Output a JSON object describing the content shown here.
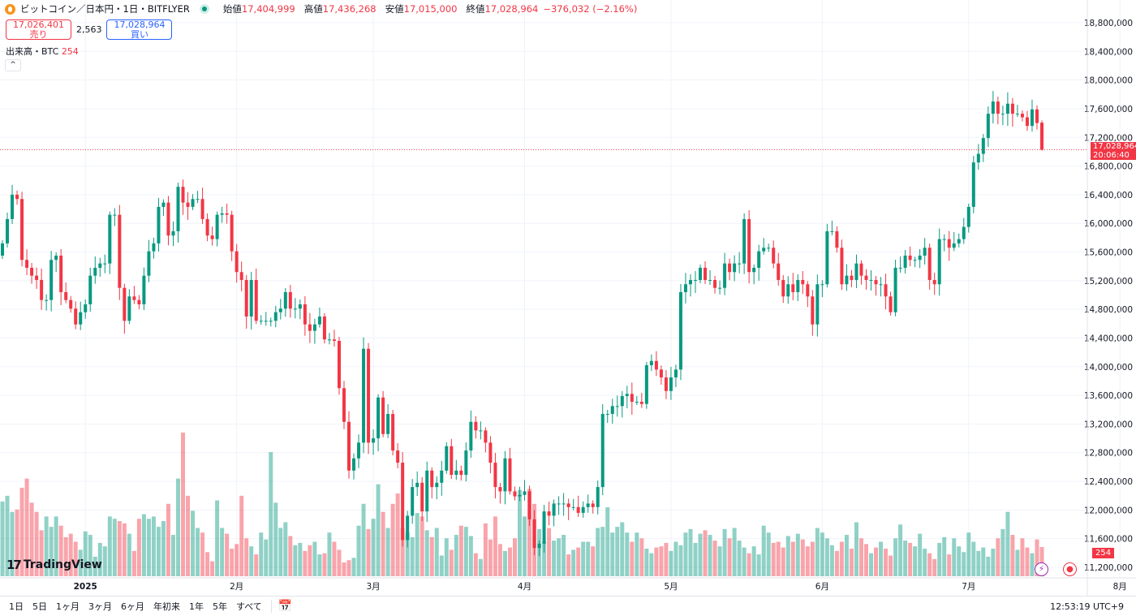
{
  "header": {
    "symbol": "ビットコイン／日本円・1日・BITFLYER",
    "open_label": "始値",
    "open": "17,404,999",
    "high_label": "高値",
    "high": "17,436,268",
    "low_label": "安値",
    "low": "17,015,000",
    "close_label": "終値",
    "close": "17,028,964",
    "change": "−376,032 (−2.16%)"
  },
  "trade": {
    "sell_price": "17,026,401",
    "sell_label": "売り",
    "spread": "2,563",
    "buy_price": "17,028,964",
    "buy_label": "買い"
  },
  "volume_indicator": {
    "label": "出来高・BTC",
    "value": "254"
  },
  "collapse_icon": "chevron-up-icon",
  "brand": "TradingView",
  "last_price": {
    "price": "17,028,964",
    "countdown": "20:06:40"
  },
  "bottom": {
    "ranges": [
      "1日",
      "5日",
      "1ヶ月",
      "3ヶ月",
      "6ヶ月",
      "年初来",
      "1年",
      "5年",
      "すべて"
    ],
    "clock": "12:53:19 UTC+9"
  },
  "colors": {
    "up": "#089981",
    "down": "#f23645",
    "grid": "#f0f3fa"
  },
  "chart_data": {
    "type": "candlestick",
    "interval": "1日",
    "ylim": [
      11200000,
      18800000
    ],
    "y_ticks": [
      "18,800,000",
      "18,400,000",
      "18,000,000",
      "17,600,000",
      "17,200,000",
      "16,800,000",
      "16,400,000",
      "16,000,000",
      "15,600,000",
      "15,200,000",
      "14,800,000",
      "14,400,000",
      "14,000,000",
      "13,600,000",
      "13,200,000",
      "12,800,000",
      "12,400,000",
      "12,000,000",
      "11,600,000",
      "11,200,000"
    ],
    "x_ticks": [
      {
        "label": "2025",
        "index": 17
      },
      {
        "label": "2月",
        "index": 48
      },
      {
        "label": "3月",
        "index": 76
      },
      {
        "label": "4月",
        "index": 107
      },
      {
        "label": "5月",
        "index": 137
      },
      {
        "label": "6月",
        "index": 168
      },
      {
        "label": "7月",
        "index": 198
      },
      {
        "label": "8月",
        "index": 229
      }
    ],
    "first_open": 15550000,
    "close": [
      15720000,
      16060000,
      16400000,
      16340000,
      15490000,
      15380000,
      15270000,
      15210000,
      14930000,
      14930000,
      15490000,
      15550000,
      15040000,
      14930000,
      14810000,
      14590000,
      14760000,
      14870000,
      15270000,
      15380000,
      15440000,
      15440000,
      16120000,
      16120000,
      15100000,
      14640000,
      14980000,
      14930000,
      14870000,
      15270000,
      15610000,
      15720000,
      16230000,
      16290000,
      15830000,
      15890000,
      16510000,
      16290000,
      16230000,
      16340000,
      16340000,
      16060000,
      15830000,
      15780000,
      16120000,
      16140000,
      16120000,
      15610000,
      15320000,
      15210000,
      14700000,
      15210000,
      14640000,
      14640000,
      14640000,
      14640000,
      14760000,
      14810000,
      15040000,
      14810000,
      14810000,
      14870000,
      14590000,
      14500000,
      14590000,
      14700000,
      14380000,
      14380000,
      14360000,
      13700000,
      13230000,
      12550000,
      12720000,
      12940000,
      14250000,
      12940000,
      13000000,
      13570000,
      13060000,
      13340000,
      12830000,
      12660000,
      11580000,
      11920000,
      12320000,
      12380000,
      11980000,
      12550000,
      12320000,
      12380000,
      12550000,
      12890000,
      12490000,
      12550000,
      12490000,
      12830000,
      13230000,
      13110000,
      13110000,
      12940000,
      12660000,
      12320000,
      12260000,
      12720000,
      12260000,
      12190000,
      12210000,
      12260000,
      11870000,
      11470000,
      11530000,
      11980000,
      11920000,
      12090000,
      12090000,
      12090000,
      12040000,
      12040000,
      11960000,
      12040000,
      12090000,
      12040000,
      12320000,
      13340000,
      13340000,
      13450000,
      13450000,
      13590000,
      13620000,
      13510000,
      13510000,
      13480000,
      14020000,
      14080000,
      13960000,
      13850000,
      13660000,
      13850000,
      13960000,
      15040000,
      15150000,
      15210000,
      15210000,
      15380000,
      15210000,
      15210000,
      15100000,
      15100000,
      15440000,
      15320000,
      15440000,
      15440000,
      16060000,
      15320000,
      15380000,
      15610000,
      15660000,
      15660000,
      15440000,
      15210000,
      14980000,
      15150000,
      15040000,
      15210000,
      15150000,
      14980000,
      14590000,
      15150000,
      15150000,
      15890000,
      15890000,
      15660000,
      15150000,
      15270000,
      15210000,
      15440000,
      15270000,
      15210000,
      15210000,
      15150000,
      15150000,
      14980000,
      14760000,
      15380000,
      15380000,
      15550000,
      15490000,
      15490000,
      15550000,
      15660000,
      15210000,
      15150000,
      15780000,
      15780000,
      15660000,
      15720000,
      15780000,
      15950000,
      16230000,
      16850000,
      16970000,
      17190000,
      17530000,
      17700000,
      17530000,
      17530000,
      17670000,
      17530000,
      17530000,
      17480000,
      17360000,
      17590000,
      17400000,
      17028964
    ],
    "last_candle": {
      "open": 17404999,
      "high": 17436268,
      "low": 17015000,
      "close": 17028964
    },
    "volume_unit": "BTC",
    "volume": [
      650,
      700,
      560,
      580,
      770,
      850,
      640,
      560,
      400,
      520,
      430,
      520,
      440,
      340,
      370,
      300,
      230,
      390,
      360,
      170,
      290,
      260,
      520,
      500,
      480,
      460,
      370,
      220,
      500,
      540,
      500,
      520,
      430,
      480,
      630,
      360,
      850,
      1250,
      700,
      570,
      420,
      380,
      210,
      130,
      660,
      420,
      370,
      240,
      280,
      700,
      330,
      260,
      190,
      380,
      320,
      1080,
      640,
      420,
      470,
      350,
      270,
      290,
      220,
      270,
      300,
      190,
      200,
      380,
      300,
      230,
      120,
      140,
      160,
      440,
      630,
      410,
      500,
      800,
      560,
      420,
      630,
      720,
      420,
      380,
      340,
      550,
      520,
      400,
      340,
      420,
      180,
      330,
      230,
      360,
      440,
      430,
      350,
      200,
      150,
      460,
      320,
      520,
      280,
      220,
      250,
      330,
      750,
      520,
      760,
      630,
      410,
      300,
      420,
      310,
      330,
      360,
      190,
      230,
      250,
      300,
      300,
      260,
      420,
      430,
      600,
      380,
      430,
      470,
      380,
      300,
      380,
      330,
      240,
      200,
      250,
      260,
      290,
      220,
      300,
      270,
      380,
      410,
      290,
      370,
      400,
      360,
      310,
      260,
      410,
      330,
      420,
      310,
      250,
      200,
      260,
      190,
      440,
      380,
      290,
      300,
      250,
      350,
      300,
      370,
      320,
      260,
      300,
      420,
      380,
      330,
      270,
      220,
      300,
      360,
      240,
      470,
      330,
      280,
      200,
      250,
      300,
      240,
      180,
      330,
      450,
      310,
      290,
      260,
      370,
      240,
      200,
      150,
      290,
      340,
      190,
      330,
      260,
      210,
      380,
      300,
      220,
      250,
      170,
      240,
      330,
      410,
      560,
      360,
      230,
      330,
      250,
      200,
      320,
      254
    ]
  }
}
